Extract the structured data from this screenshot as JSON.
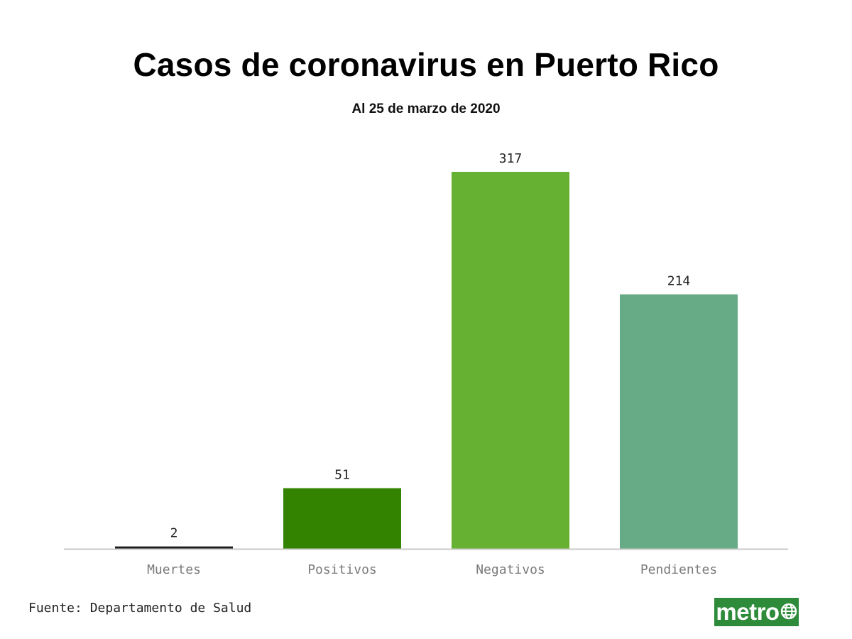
{
  "chart_data": {
    "type": "bar",
    "title": "Casos de coronavirus en Puerto Rico",
    "subtitle": "Al 25 de marzo de 2020",
    "categories": [
      "Muertes",
      "Positivos",
      "Negativos",
      "Pendientes"
    ],
    "values": [
      2,
      51,
      317,
      214
    ],
    "value_labels": [
      "2",
      "51",
      "317",
      "214"
    ],
    "colors": [
      "#1a1a1a",
      "#338300",
      "#66b032",
      "#67ab86"
    ],
    "ylim": [
      0,
      317
    ],
    "xlabel": "",
    "ylabel": "",
    "grid": false,
    "legend": "none",
    "source": "Fuente: Departamento de Salud"
  },
  "branding": {
    "logo_text": "metro",
    "logo_color": "#2e8b3a",
    "logo_icon": "globe-icon"
  },
  "colors": {
    "axis": "#c8c8c8",
    "tick_label": "#7a7a7a"
  }
}
